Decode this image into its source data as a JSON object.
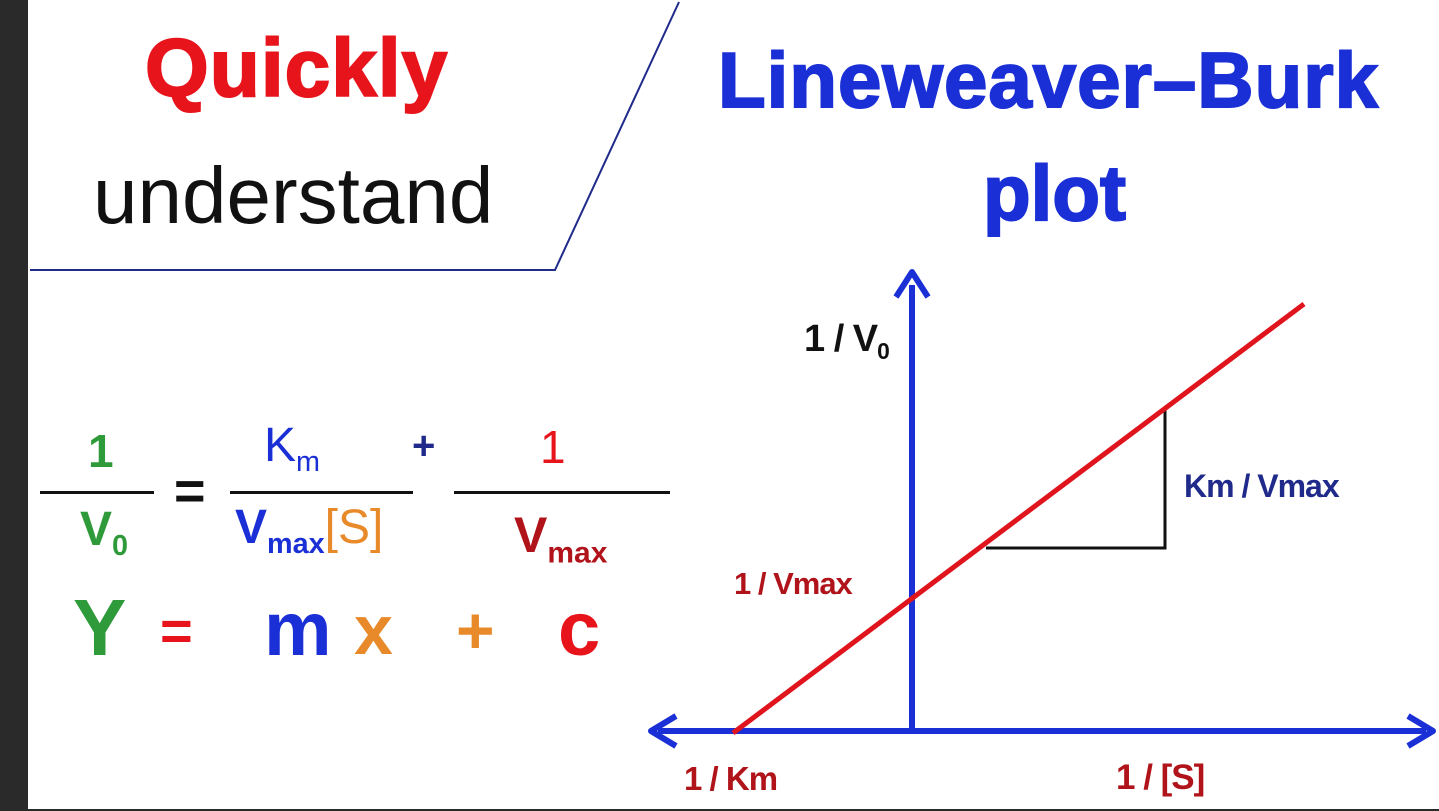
{
  "banner": {
    "left_line1": "Quickly",
    "left_line2": "understand",
    "right_line1": "Lineweaver–Burk",
    "right_line2": "plot"
  },
  "equation": {
    "lhs_numerator": "1",
    "lhs_denominator_main": "V",
    "lhs_denominator_sub": "0",
    "equals": "=",
    "term1_numerator_main": "K",
    "term1_numerator_sub": "m",
    "term1_denominator_main": "V",
    "term1_denominator_sub": "max",
    "term1_denominator_extra": "[S]",
    "plus": "+",
    "term2_numerator": "1",
    "term2_denominator_main": "V",
    "term2_denominator_sub": "max"
  },
  "linear_form": {
    "y": "Y",
    "equals": "=",
    "m": "m",
    "x": "x",
    "plus": "+",
    "c": "c"
  },
  "graph": {
    "y_axis_label_main": "1 / V",
    "y_axis_label_sub": "0",
    "x_axis_label": "1 / [S]",
    "x_intercept_label": "1 / Km",
    "y_intercept_label": "1 / Vmax",
    "slope_label": "Km / Vmax"
  },
  "colors": {
    "red": "#e8141c",
    "dark_red": "#b0141a",
    "blue": "#1a2fd6",
    "green": "#2e9a3a",
    "orange": "#e8892a",
    "black": "#111111"
  }
}
